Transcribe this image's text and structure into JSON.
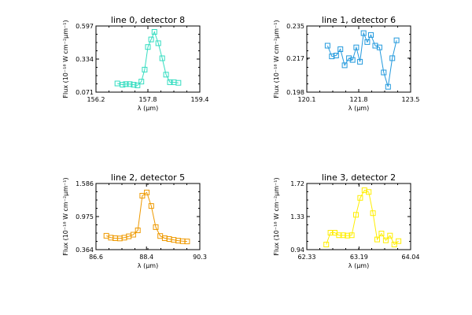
{
  "chart_data": [
    {
      "type": "line",
      "marker": "open-square",
      "title": "line 0, detector 8",
      "xlabel": "λ (μm)",
      "ylabel": "Flux (10⁻¹⁸ W cm⁻²μm⁻¹)",
      "xlim": [
        156.2,
        159.4
      ],
      "ylim": [
        0.071,
        0.597
      ],
      "xticks": [
        "156.2",
        "157.8",
        "159.4"
      ],
      "yticks": [
        "0.071",
        "0.334",
        "0.597"
      ],
      "grid": false,
      "color": "#33ddc0",
      "x": [
        156.86,
        157.02,
        157.12,
        157.24,
        157.36,
        157.48,
        157.6,
        157.7,
        157.8,
        157.9,
        158.0,
        158.12,
        158.24,
        158.36,
        158.48,
        158.6,
        158.74
      ],
      "y": [
        0.14,
        0.13,
        0.135,
        0.135,
        0.13,
        0.125,
        0.155,
        0.25,
        0.43,
        0.49,
        0.55,
        0.46,
        0.34,
        0.21,
        0.15,
        0.15,
        0.145
      ]
    },
    {
      "type": "line",
      "marker": "open-square",
      "title": "line 1, detector 6",
      "xlabel": "λ (μm)",
      "ylabel": "Flux (10⁻¹⁸ W cm⁻²μm⁻¹)",
      "xlim": [
        120.1,
        123.5
      ],
      "ylim": [
        0.198,
        0.235
      ],
      "xticks": [
        "120.1",
        "121.8",
        "123.5"
      ],
      "yticks": [
        "0.198",
        "0.217",
        "0.235"
      ],
      "grid": false,
      "color": "#2299dd",
      "x": [
        120.78,
        120.92,
        121.06,
        121.2,
        121.34,
        121.48,
        121.6,
        121.72,
        121.84,
        121.96,
        122.08,
        122.2,
        122.34,
        122.48,
        122.62,
        122.76,
        122.9,
        123.04
      ],
      "y": [
        0.224,
        0.218,
        0.2185,
        0.222,
        0.213,
        0.217,
        0.216,
        0.223,
        0.215,
        0.231,
        0.226,
        0.23,
        0.224,
        0.223,
        0.209,
        0.201,
        0.217,
        0.227
      ]
    },
    {
      "type": "line",
      "marker": "open-square",
      "title": "line 2, detector 5",
      "xlabel": "λ (μm)",
      "ylabel": "Flux (10⁻¹⁸ W cm⁻²μm⁻¹)",
      "xlim": [
        86.6,
        90.3
      ],
      "ylim": [
        0.364,
        1.586
      ],
      "xticks": [
        "86.6",
        "88.4",
        "90.3"
      ],
      "yticks": [
        "0.364",
        "0.975",
        "1.586"
      ],
      "grid": false,
      "color": "#ee9900",
      "x": [
        86.97,
        87.13,
        87.29,
        87.45,
        87.61,
        87.77,
        87.93,
        88.09,
        88.25,
        88.41,
        88.57,
        88.73,
        88.89,
        89.05,
        89.21,
        89.37,
        89.53,
        89.69,
        89.85
      ],
      "y": [
        0.62,
        0.585,
        0.575,
        0.57,
        0.585,
        0.61,
        0.64,
        0.72,
        1.36,
        1.42,
        1.17,
        0.78,
        0.615,
        0.575,
        0.56,
        0.545,
        0.53,
        0.52,
        0.515
      ]
    },
    {
      "type": "line",
      "marker": "open-square",
      "title": "line 3, detector 2",
      "xlabel": "λ (μm)",
      "ylabel": "Flux (10⁻¹⁸ W cm⁻²μm⁻¹)",
      "xlim": [
        62.33,
        64.04
      ],
      "ylim": [
        0.94,
        1.72
      ],
      "xticks": [
        "62.33",
        "63.19",
        "64.04"
      ],
      "yticks": [
        "0.94",
        "1.33",
        "1.72"
      ],
      "grid": false,
      "color": "#ffee00",
      "x": [
        62.65,
        62.72,
        62.79,
        62.86,
        62.93,
        63.0,
        63.07,
        63.14,
        63.21,
        63.28,
        63.35,
        63.42,
        63.49,
        63.56,
        63.63,
        63.7,
        63.77,
        63.84
      ],
      "y": [
        1.0,
        1.14,
        1.14,
        1.11,
        1.11,
        1.105,
        1.11,
        1.35,
        1.55,
        1.64,
        1.62,
        1.37,
        1.06,
        1.13,
        1.05,
        1.105,
        1.0,
        1.04
      ]
    }
  ]
}
